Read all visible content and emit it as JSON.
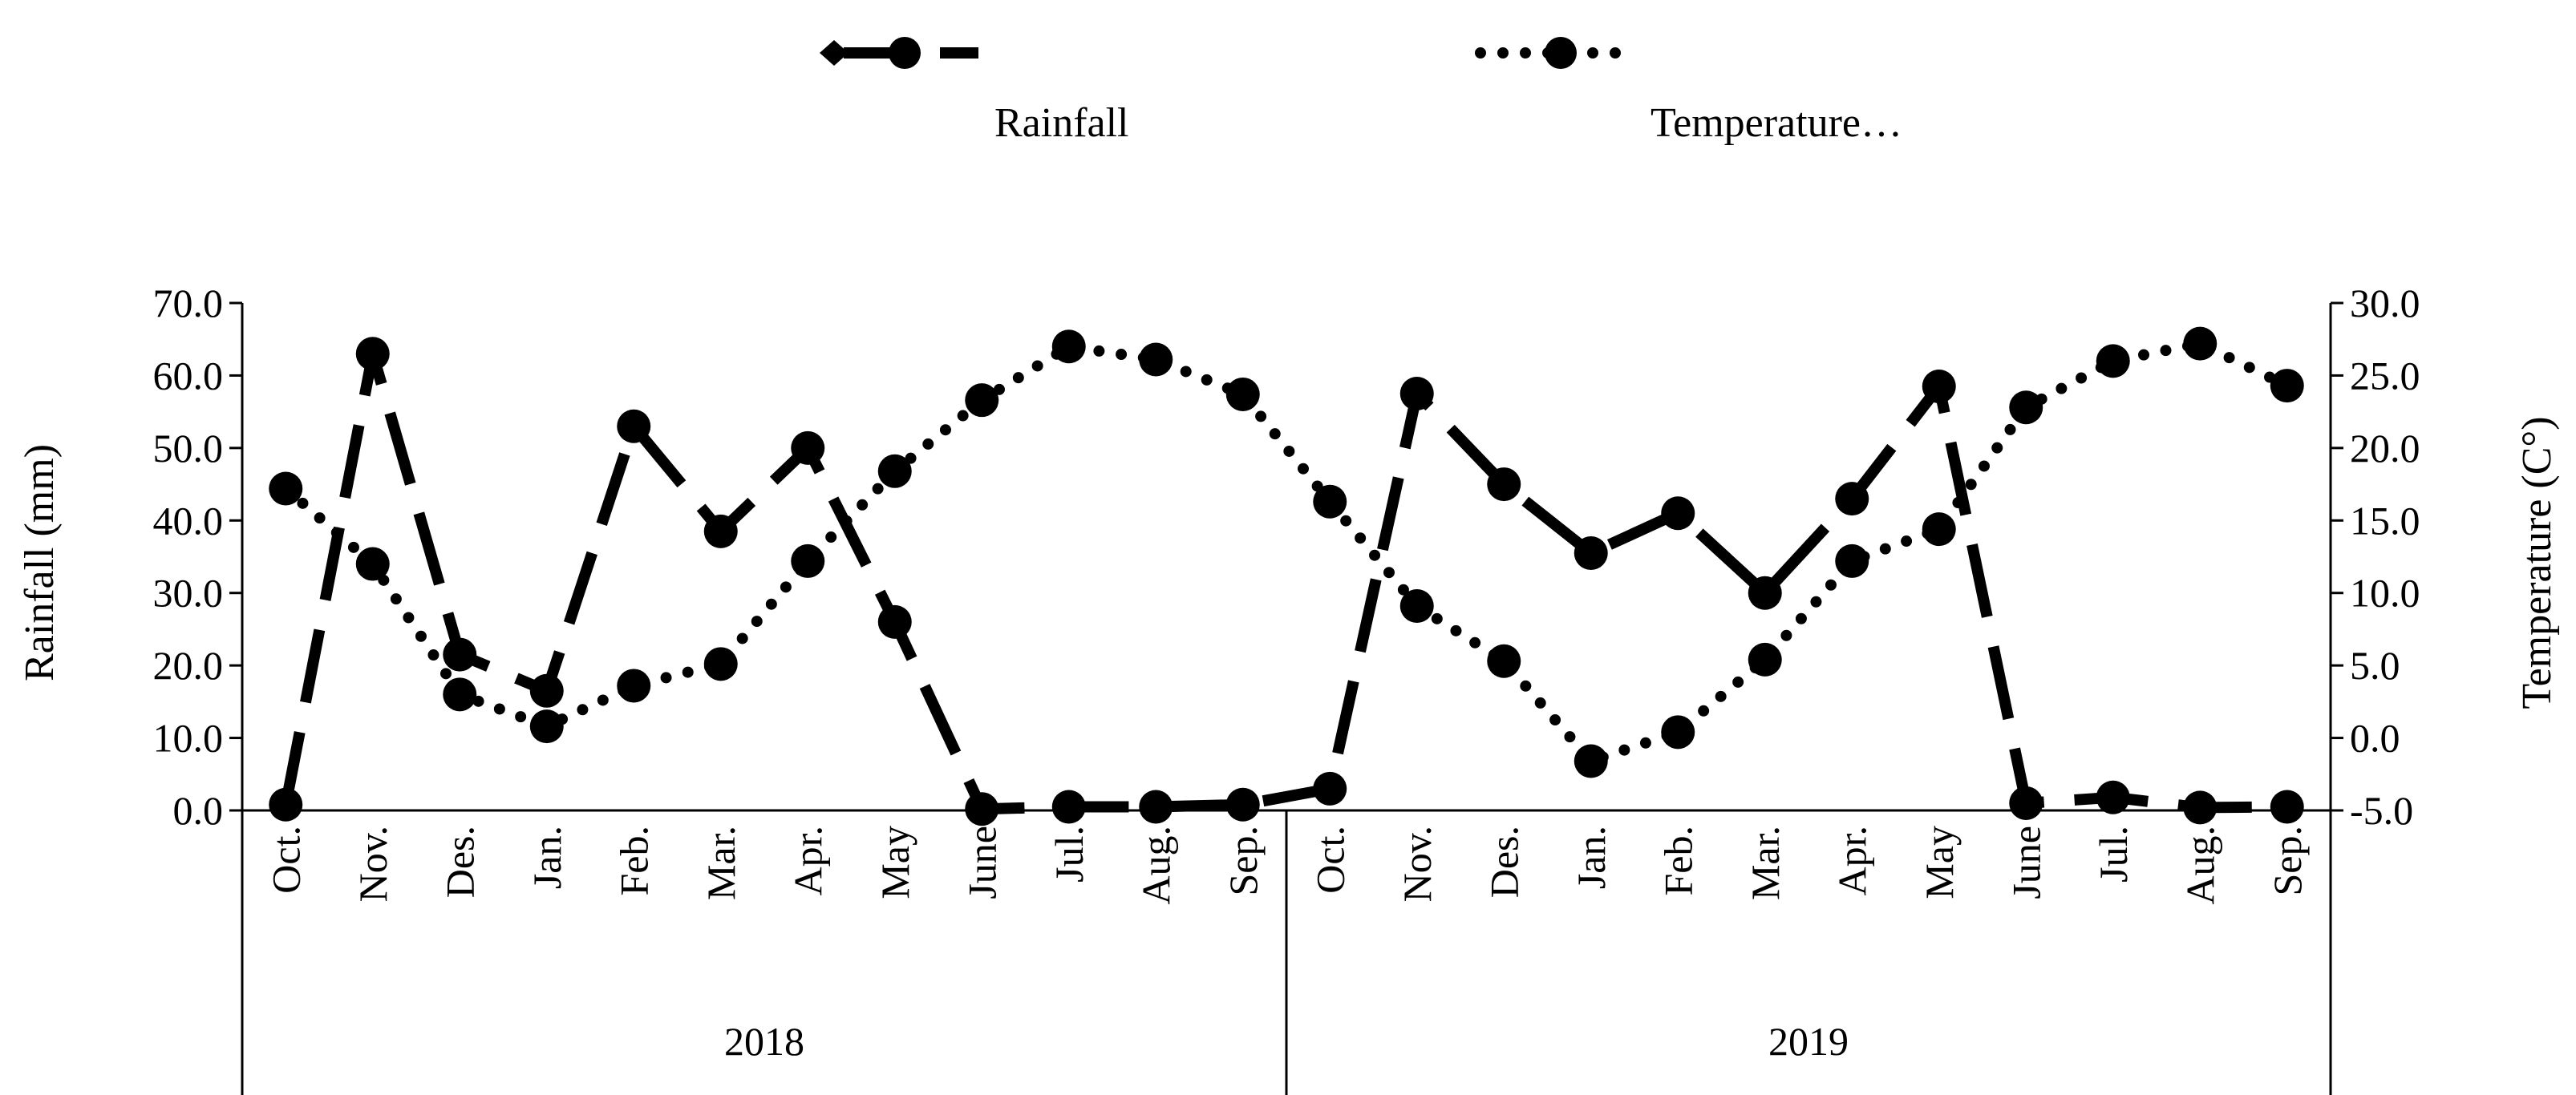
{
  "chart_data": {
    "type": "line",
    "categories": [
      "Oct.",
      "Nov.",
      "Des.",
      "Jan.",
      "Feb.",
      "Mar.",
      "Apr.",
      "May",
      "June",
      "Jul.",
      "Aug.",
      "Sep.",
      "Oct.",
      "Nov.",
      "Des.",
      "Jan.",
      "Feb.",
      "Mar.",
      "Apr.",
      "May",
      "June",
      "Jul.",
      "Aug.",
      "Sep."
    ],
    "groups": [
      {
        "label": "2018",
        "start": 0,
        "end": 11
      },
      {
        "label": "2019",
        "start": 12,
        "end": 23
      }
    ],
    "series": [
      {
        "name": "Rainfall",
        "axis": "left",
        "style": "dashed",
        "values": [
          0.8,
          63.0,
          21.5,
          16.5,
          53.0,
          38.5,
          50.0,
          26.0,
          0.2,
          0.5,
          0.5,
          0.8,
          3.0,
          57.5,
          45.0,
          35.5,
          41.0,
          30.0,
          43.0,
          58.5,
          1.0,
          1.8,
          0.4,
          0.5
        ]
      },
      {
        "name": "Temperature…",
        "axis": "right",
        "style": "dotted",
        "values": [
          17.2,
          12.0,
          3.0,
          0.8,
          3.6,
          5.1,
          12.2,
          18.4,
          23.3,
          27.0,
          26.1,
          23.7,
          16.3,
          9.1,
          5.3,
          -1.6,
          0.4,
          5.4,
          12.2,
          14.4,
          22.8,
          26.0,
          27.2,
          24.3
        ]
      }
    ],
    "ylabel": "Rainfall (mm)",
    "ylim": [
      0,
      70
    ],
    "yticks": [
      "0.0",
      "10.0",
      "20.0",
      "30.0",
      "40.0",
      "50.0",
      "60.0",
      "70.0"
    ],
    "y2label": "Temperature (C°)",
    "y2lim": [
      -5,
      30
    ],
    "y2ticks": [
      "-5.0",
      "0.0",
      "5.0",
      "10.0",
      "15.0",
      "20.0",
      "25.0",
      "30.0"
    ],
    "legend": {
      "position": "top",
      "items": [
        "Rainfall",
        "Temperature…"
      ]
    },
    "colors": {
      "line": "#000000",
      "background": "#ffffff"
    }
  }
}
